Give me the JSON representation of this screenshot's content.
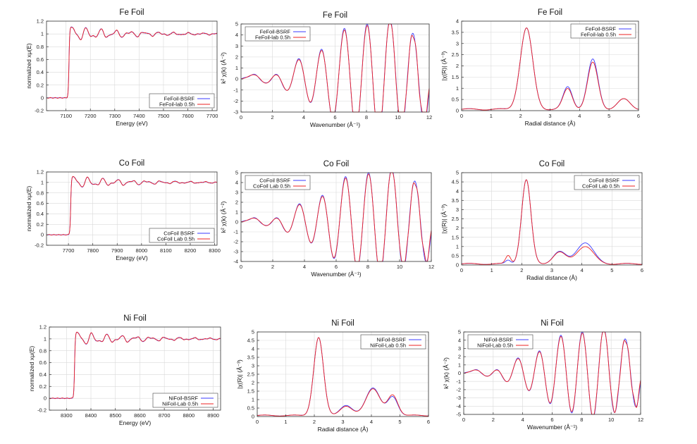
{
  "colors": {
    "series_a": "#3b3bff",
    "series_b": "#ee2222"
  },
  "chart_data": [
    {
      "type": "line",
      "title": "Fe Foil",
      "shape": "xanes",
      "edge": 7112,
      "xlabel": "Energy    (eV)",
      "ylabel": "normalized xμ(E)",
      "xlim": [
        7020,
        7720
      ],
      "ylim": [
        -0.2,
        1.2
      ],
      "xticks": [
        7100,
        7200,
        7300,
        7400,
        7500,
        7600,
        7700
      ],
      "yticks": [
        -0.2,
        0,
        0.2,
        0.4,
        0.6,
        0.8,
        1,
        1.2
      ],
      "legend": "bottom-right",
      "series": [
        {
          "name": "FeFoil-BSRF"
        },
        {
          "name": "FeFoil-lab 0.5h"
        }
      ]
    },
    {
      "type": "line",
      "title": "Fe Foil",
      "shape": "kspace",
      "xlabel": "Wavenumber    (Å⁻¹)",
      "ylabel": "k² χ(k)    (Å⁻²)",
      "xlim": [
        0,
        12
      ],
      "ylim": [
        -3,
        5
      ],
      "xticks": [
        0,
        2,
        4,
        6,
        8,
        10,
        12
      ],
      "yticks": [
        -3,
        -2,
        -1,
        0,
        1,
        2,
        3,
        4,
        5
      ],
      "legend": "top-left",
      "series": [
        {
          "name": "FeFoil-BSRF"
        },
        {
          "name": "FeFoil-lab 0.5h"
        }
      ]
    },
    {
      "type": "line",
      "title": "Fe Foil",
      "shape": "rspace",
      "xlabel": "Radial distance    (Å)",
      "ylabel": "|χ(R)|    (Å⁻³)",
      "xlim": [
        0,
        6
      ],
      "ylim": [
        0,
        4
      ],
      "xticks": [
        0,
        1,
        2,
        3,
        4,
        5,
        6
      ],
      "yticks": [
        0,
        0.5,
        1,
        1.5,
        2,
        2.5,
        3,
        3.5,
        4
      ],
      "legend": "top-right",
      "peaks": [
        {
          "r": 2.2,
          "a": 3.62,
          "b": 3.62,
          "w": 0.3
        },
        {
          "r": 3.6,
          "a": 1.0,
          "b": 0.92,
          "w": 0.22
        },
        {
          "r": 4.45,
          "a": 2.22,
          "b": 2.08,
          "w": 0.25
        },
        {
          "r": 5.5,
          "a": 0.45,
          "b": 0.45,
          "w": 0.3
        }
      ],
      "series": [
        {
          "name": "FeFoil-BSRF"
        },
        {
          "name": "FeFoil-lab 0.5h"
        }
      ]
    },
    {
      "type": "line",
      "title": "Co Foil",
      "shape": "xanes",
      "edge": 7709,
      "xlabel": "Energy    (eV)",
      "ylabel": "normalized xμ(E)",
      "xlim": [
        7610,
        8310
      ],
      "ylim": [
        -0.2,
        1.2
      ],
      "xticks": [
        7700,
        7800,
        7900,
        8000,
        8100,
        8200,
        8300
      ],
      "yticks": [
        -0.2,
        0,
        0.2,
        0.4,
        0.6,
        0.8,
        1,
        1.2
      ],
      "legend": "bottom-right",
      "series": [
        {
          "name": "CoFoil BSRF"
        },
        {
          "name": "CoFoil Lab 0.5h"
        }
      ]
    },
    {
      "type": "line",
      "title": "Co Foil",
      "shape": "kspace",
      "xlabel": "Wavenumber    (Å⁻¹)",
      "ylabel": "k² χ(k)    (Å⁻²)",
      "xlim": [
        0,
        12
      ],
      "ylim": [
        -4,
        5
      ],
      "xticks": [
        0,
        2,
        4,
        6,
        8,
        10,
        12
      ],
      "yticks": [
        -4,
        -3,
        -2,
        -1,
        0,
        1,
        2,
        3,
        4,
        5
      ],
      "legend": "top-left",
      "series": [
        {
          "name": "CoFoil BSRF"
        },
        {
          "name": "CoFoil Lab 0.5h"
        }
      ]
    },
    {
      "type": "line",
      "title": "Co Foil",
      "shape": "rspace",
      "xlabel": "Radial distance    (Å)",
      "ylabel": "|χ(R)|    (Å⁻³)",
      "xlim": [
        0,
        6
      ],
      "ylim": [
        0,
        5
      ],
      "xticks": [
        0,
        1,
        2,
        3,
        4,
        5,
        6
      ],
      "yticks": [
        0,
        0.5,
        1,
        1.5,
        2,
        2.5,
        3,
        3.5,
        4,
        4.5,
        5
      ],
      "legend": "top-right",
      "peaks": [
        {
          "r": 2.15,
          "a": 4.55,
          "b": 4.55,
          "w": 0.22
        },
        {
          "r": 1.55,
          "a": 0.2,
          "b": 0.45,
          "w": 0.12
        },
        {
          "r": 3.25,
          "a": 0.65,
          "b": 0.62,
          "w": 0.3
        },
        {
          "r": 4.1,
          "a": 1.15,
          "b": 0.95,
          "w": 0.4
        }
      ],
      "series": [
        {
          "name": "CoFoil BSRF"
        },
        {
          "name": "CoFoil Lab 0.5h"
        }
      ]
    },
    {
      "type": "line",
      "title": "Ni Foil",
      "shape": "xanes",
      "edge": 8333,
      "xlabel": "Energy    (eV)",
      "ylabel": "normalized xμ(E)",
      "xlim": [
        8230,
        8930
      ],
      "ylim": [
        -0.2,
        1.2
      ],
      "xticks": [
        8300,
        8400,
        8500,
        8600,
        8700,
        8800,
        8900
      ],
      "yticks": [
        -0.2,
        0,
        0.2,
        0.4,
        0.6,
        0.8,
        1,
        1.2
      ],
      "legend": "bottom-right",
      "series": [
        {
          "name": "NiFoil-BSRF"
        },
        {
          "name": "NiFoil-Lab 0.5h"
        }
      ]
    },
    {
      "type": "line",
      "title": "Ni Foil",
      "shape": "rspace",
      "xlabel": "Radial distance    (Å)",
      "ylabel": "|χ(R)|    (Å⁻³)",
      "xlim": [
        0,
        6
      ],
      "ylim": [
        0,
        5
      ],
      "xticks": [
        0,
        1,
        2,
        3,
        4,
        5,
        6
      ],
      "yticks": [
        0,
        0.5,
        1,
        1.5,
        2,
        2.5,
        3,
        3.5,
        4,
        4.5,
        5
      ],
      "legend": "top-right",
      "peaks": [
        {
          "r": 2.15,
          "a": 4.6,
          "b": 4.6,
          "w": 0.24
        },
        {
          "r": 3.1,
          "a": 0.6,
          "b": 0.55,
          "w": 0.3
        },
        {
          "r": 4.05,
          "a": 1.65,
          "b": 1.6,
          "w": 0.35
        },
        {
          "r": 4.75,
          "a": 1.1,
          "b": 1.2,
          "w": 0.25
        }
      ],
      "series": [
        {
          "name": "NiFoil-BSRF"
        },
        {
          "name": "NiFoil-Lab 0.5h"
        }
      ]
    },
    {
      "type": "line",
      "title": "Ni Foil",
      "shape": "kspace",
      "xlabel": "Wavenumber    (Å⁻¹)",
      "ylabel": "k² χ(k)    (Å⁻²)",
      "xlim": [
        0,
        12
      ],
      "ylim": [
        -5,
        5
      ],
      "xticks": [
        0,
        2,
        4,
        6,
        8,
        10,
        12
      ],
      "yticks": [
        -5,
        -4,
        -3,
        -2,
        -1,
        0,
        1,
        2,
        3,
        4,
        5
      ],
      "legend": "top-left",
      "series": [
        {
          "name": "NiFoil-BSRF"
        },
        {
          "name": "NiFoil-Lab 0.5h"
        }
      ]
    }
  ]
}
